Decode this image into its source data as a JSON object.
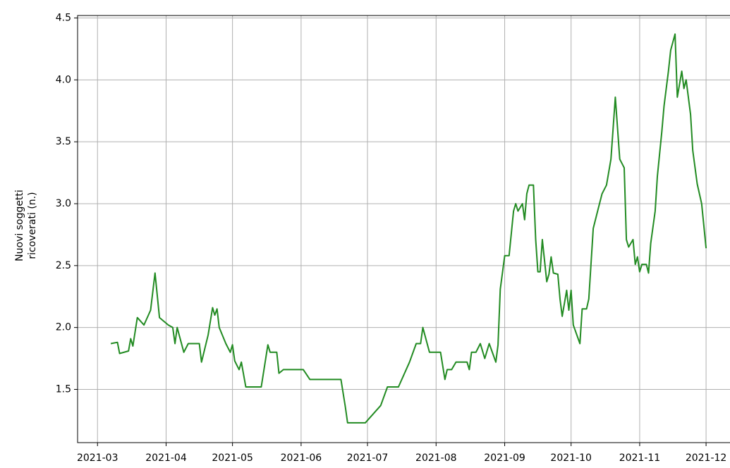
{
  "chart_data": {
    "type": "line",
    "ylabel": [
      "Nuovi soggetti",
      "ricoverati (n.)"
    ],
    "x": [
      "2021-03-07",
      "2021-03-10",
      "2021-03-11",
      "2021-03-15",
      "2021-03-16",
      "2021-03-17",
      "2021-03-19",
      "2021-03-22",
      "2021-03-25",
      "2021-03-27",
      "2021-03-29",
      "2021-04-02",
      "2021-04-04",
      "2021-04-05",
      "2021-04-06",
      "2021-04-09",
      "2021-04-11",
      "2021-04-16",
      "2021-04-17",
      "2021-04-20",
      "2021-04-22",
      "2021-04-23",
      "2021-04-24",
      "2021-04-25",
      "2021-04-28",
      "2021-04-30",
      "2021-05-01",
      "2021-05-02",
      "2021-05-04",
      "2021-05-05",
      "2021-05-07",
      "2021-05-14",
      "2021-05-17",
      "2021-05-18",
      "2021-05-21",
      "2021-05-22",
      "2021-05-24",
      "2021-06-02",
      "2021-06-05",
      "2021-06-19",
      "2021-06-21",
      "2021-06-22",
      "2021-06-30",
      "2021-07-07",
      "2021-07-10",
      "2021-07-15",
      "2021-07-20",
      "2021-07-23",
      "2021-07-25",
      "2021-07-26",
      "2021-07-29",
      "2021-08-03",
      "2021-08-05",
      "2021-08-06",
      "2021-08-08",
      "2021-08-10",
      "2021-08-15",
      "2021-08-16",
      "2021-08-17",
      "2021-08-19",
      "2021-08-21",
      "2021-08-23",
      "2021-08-25",
      "2021-08-27",
      "2021-08-28",
      "2021-08-29",
      "2021-08-30",
      "2021-09-01",
      "2021-09-03",
      "2021-09-05",
      "2021-09-06",
      "2021-09-07",
      "2021-09-09",
      "2021-09-10",
      "2021-09-11",
      "2021-09-12",
      "2021-09-14",
      "2021-09-15",
      "2021-09-16",
      "2021-09-17",
      "2021-09-18",
      "2021-09-20",
      "2021-09-21",
      "2021-09-22",
      "2021-09-23",
      "2021-09-25",
      "2021-09-26",
      "2021-09-27",
      "2021-09-29",
      "2021-09-30",
      "2021-10-01",
      "2021-10-02",
      "2021-10-05",
      "2021-10-06",
      "2021-10-08",
      "2021-10-09",
      "2021-10-11",
      "2021-10-13",
      "2021-10-15",
      "2021-10-17",
      "2021-10-19",
      "2021-10-21",
      "2021-10-23",
      "2021-10-25",
      "2021-10-26",
      "2021-10-27",
      "2021-10-29",
      "2021-10-30",
      "2021-10-31",
      "2021-11-01",
      "2021-11-02",
      "2021-11-04",
      "2021-11-05",
      "2021-11-06",
      "2021-11-08",
      "2021-11-09",
      "2021-11-11",
      "2021-11-12",
      "2021-11-14",
      "2021-11-15",
      "2021-11-17",
      "2021-11-18",
      "2021-11-20",
      "2021-11-21",
      "2021-11-22",
      "2021-11-24",
      "2021-11-25",
      "2021-11-27",
      "2021-11-29",
      "2021-12-01"
    ],
    "series": [
      {
        "name": "Nuovi soggetti ricoverati",
        "color": "#228b22",
        "values": [
          1.87,
          1.88,
          1.79,
          1.81,
          1.91,
          1.85,
          2.08,
          2.02,
          2.14,
          2.44,
          2.08,
          2.02,
          2.0,
          1.87,
          2.0,
          1.8,
          1.87,
          1.87,
          1.72,
          1.94,
          2.16,
          2.1,
          2.15,
          2.0,
          1.87,
          1.8,
          1.86,
          1.73,
          1.66,
          1.72,
          1.52,
          1.52,
          1.86,
          1.8,
          1.8,
          1.63,
          1.66,
          1.66,
          1.58,
          1.58,
          1.36,
          1.23,
          1.23,
          1.37,
          1.52,
          1.52,
          1.72,
          1.87,
          1.87,
          2.0,
          1.8,
          1.8,
          1.58,
          1.66,
          1.66,
          1.72,
          1.72,
          1.66,
          1.8,
          1.8,
          1.87,
          1.75,
          1.87,
          1.77,
          1.72,
          1.86,
          2.31,
          2.58,
          2.58,
          2.94,
          3.0,
          2.94,
          3.0,
          2.87,
          3.08,
          3.15,
          3.15,
          2.71,
          2.45,
          2.45,
          2.71,
          2.37,
          2.43,
          2.57,
          2.44,
          2.43,
          2.23,
          2.09,
          2.3,
          2.14,
          2.3,
          2.02,
          1.87,
          2.15,
          2.15,
          2.23,
          2.8,
          2.94,
          3.08,
          3.15,
          3.36,
          3.86,
          3.36,
          3.29,
          2.71,
          2.65,
          2.71,
          2.51,
          2.57,
          2.45,
          2.51,
          2.51,
          2.44,
          2.68,
          2.94,
          3.22,
          3.58,
          3.79,
          4.07,
          4.24,
          4.37,
          3.86,
          4.07,
          3.93,
          4.0,
          3.72,
          3.43,
          3.16,
          3.0,
          2.64
        ]
      }
    ],
    "xlim": [
      "2021-02-20",
      "2021-12-15"
    ],
    "xticks": [
      {
        "value": "2021-03-01",
        "label": "2021-03"
      },
      {
        "value": "2021-04-01",
        "label": "2021-04"
      },
      {
        "value": "2021-05-01",
        "label": "2021-05"
      },
      {
        "value": "2021-06-01",
        "label": "2021-06"
      },
      {
        "value": "2021-07-01",
        "label": "2021-07"
      },
      {
        "value": "2021-08-01",
        "label": "2021-08"
      },
      {
        "value": "2021-09-01",
        "label": "2021-09"
      },
      {
        "value": "2021-10-01",
        "label": "2021-10"
      },
      {
        "value": "2021-11-01",
        "label": "2021-11"
      },
      {
        "value": "2021-12-01",
        "label": "2021-12"
      }
    ],
    "ylim": [
      1.07,
      4.52
    ],
    "yticks": [
      1.5,
      {
        "value": 2.0,
        "label": "2.0"
      },
      2.5,
      {
        "value": 3.0,
        "label": "3.0"
      },
      3.5,
      {
        "value": 4.0,
        "label": "4.0"
      },
      4.5
    ],
    "grid": true
  }
}
